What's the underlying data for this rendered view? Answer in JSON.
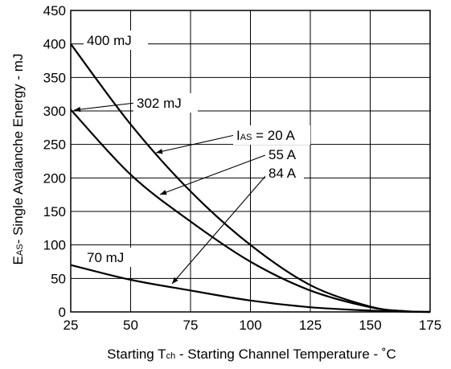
{
  "chart_data": {
    "type": "line",
    "xlabel": {
      "prefix": "Starting T",
      "sub": "ch",
      "rest": " -  Starting Channel Temperature - ˚C"
    },
    "ylabel": {
      "prefix": "E",
      "sub": "AS",
      "rest": "- Single Avalanche Energy - mJ"
    },
    "xlim": [
      25,
      175
    ],
    "ylim": [
      0,
      450
    ],
    "xticks": [
      25,
      50,
      75,
      100,
      125,
      150,
      175
    ],
    "yticks": [
      0,
      50,
      100,
      150,
      200,
      250,
      300,
      350,
      400,
      450
    ],
    "grid": true,
    "series": [
      {
        "name": "20 A",
        "x": [
          25,
          50,
          75,
          100,
          125,
          150,
          165,
          175
        ],
        "y": [
          400,
          280,
          180,
          100,
          40,
          8,
          1,
          0
        ]
      },
      {
        "name": "55 A",
        "x": [
          25,
          50,
          75,
          100,
          125,
          150,
          165,
          175
        ],
        "y": [
          302,
          205,
          135,
          75,
          32,
          7,
          1,
          0
        ]
      },
      {
        "name": "84 A",
        "x": [
          25,
          50,
          75,
          100,
          125,
          150,
          165,
          175
        ],
        "y": [
          70,
          48,
          32,
          17,
          7,
          2,
          0.3,
          0
        ]
      }
    ],
    "annotations": {
      "e400": "400 mJ",
      "e302": "302 mJ",
      "e70": "70 mJ",
      "ias_prefix": "I",
      "ias_sub": "AS",
      "ias_rest": " = 20 A",
      "a55": "55 A",
      "a84": "84 A"
    }
  }
}
